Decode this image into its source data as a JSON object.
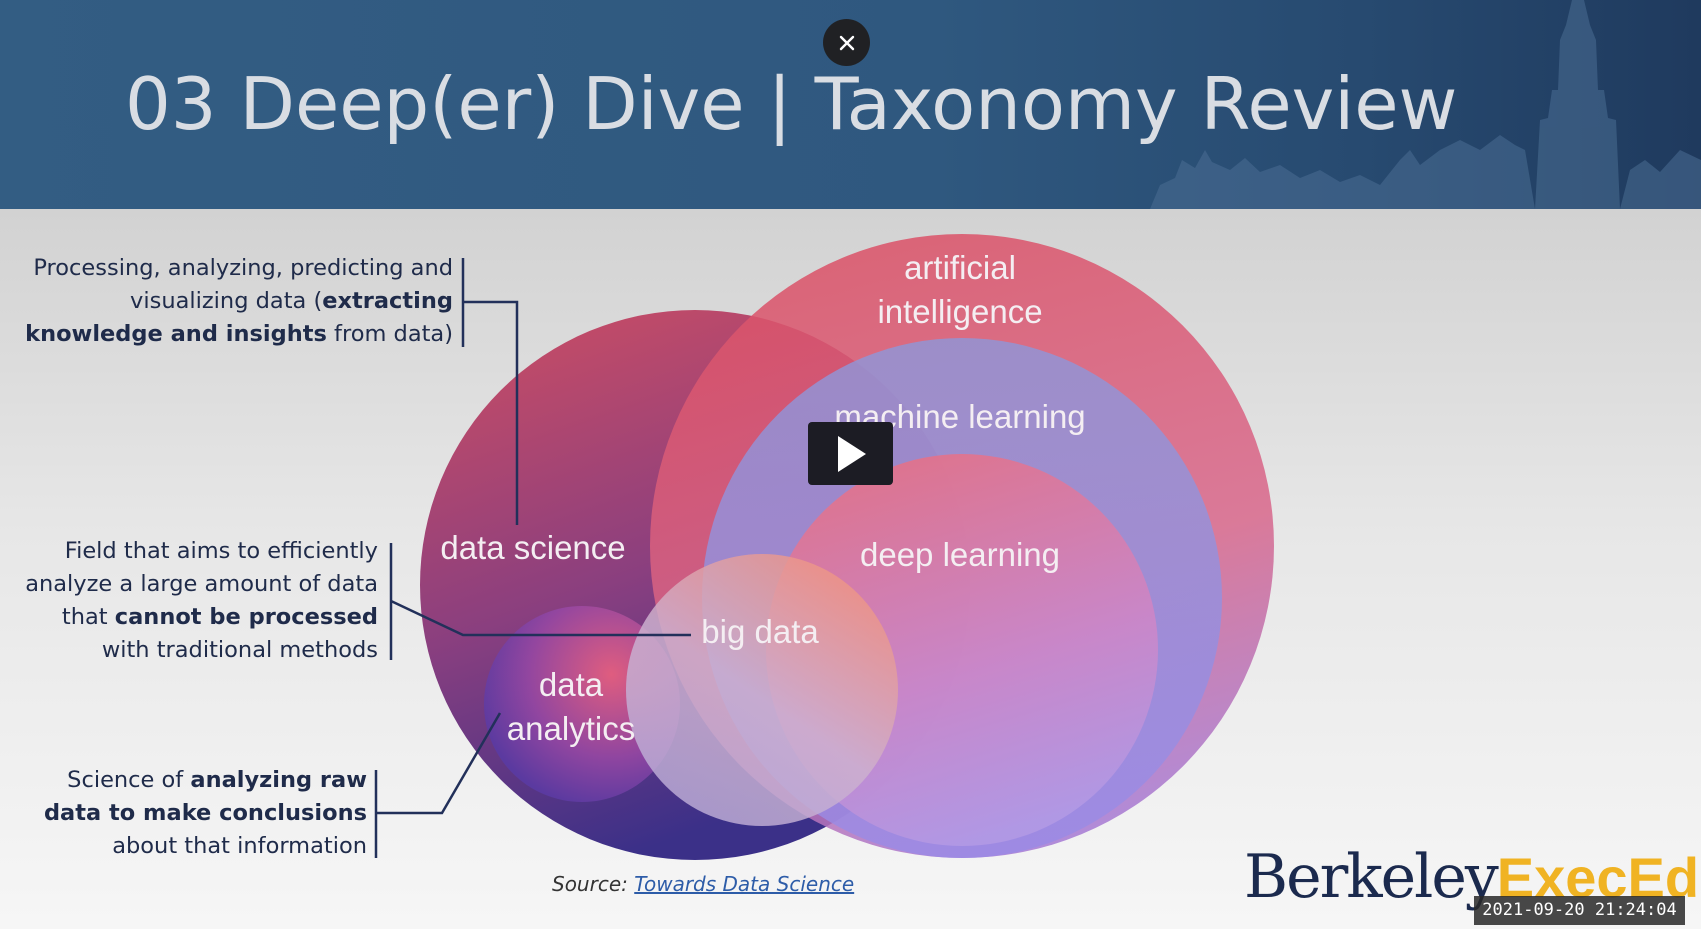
{
  "slide": {
    "title": "03 Deep(er) Dive | Taxonomy Review"
  },
  "venn": {
    "labels": {
      "artificial_intelligence_line1": "artificial",
      "artificial_intelligence_line2": "intelligence",
      "machine_learning": "machine learning",
      "deep_learning": "deep learning",
      "data_science": "data science",
      "big_data": "big data",
      "data_analytics_line1": "data",
      "data_analytics_line2": "analytics"
    }
  },
  "annotations": {
    "data_science": {
      "l1": "Processing, analyzing, predicting and",
      "l2_pre": "visualizing data (",
      "l2_bold": "extracting",
      "l3_bold": "knowledge and insights",
      "l3_post": " from data)"
    },
    "big_data": {
      "l1": "Field that aims to efficiently",
      "l2": "analyze a large amount of data",
      "l3_pre": "that ",
      "l3_bold": "cannot be processed",
      "l4": "with traditional methods"
    },
    "data_analytics": {
      "l1_pre": "Science of ",
      "l1_bold": "analyzing raw",
      "l2_bold": "data to make conclusions",
      "l3": "about that information"
    }
  },
  "source": {
    "prefix": "Source: ",
    "link_text": "Towards Data Science"
  },
  "logo": {
    "berkeley": "Berkeley",
    "execed": "ExecEd"
  },
  "player": {
    "timestamp": "2021-09-20  21:24:04",
    "close_icon": "close-icon",
    "play_icon": "play-icon"
  },
  "colors": {
    "header": "#2f587f",
    "title_text": "#d9dde3",
    "annotation_text": "#1f2b4a",
    "logo_navy": "#1b2a4e",
    "logo_gold": "#f0b323"
  }
}
